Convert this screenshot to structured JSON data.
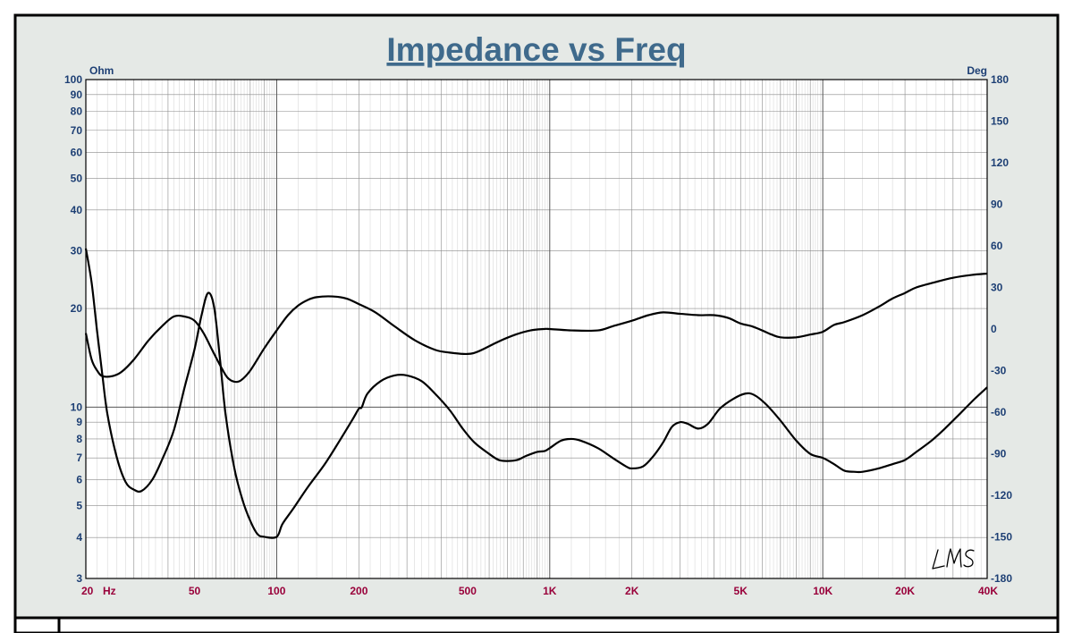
{
  "chart_data": {
    "type": "line",
    "title": "Impedance vs Freq",
    "y_left_unit": "Ohm",
    "y_right_unit": "Deg",
    "x_scale": "log",
    "y_left_scale": "log",
    "xlim": [
      20,
      40000
    ],
    "ylim_left": [
      3,
      100
    ],
    "ylim_right": [
      -180,
      180
    ],
    "x_ticks": [
      {
        "value": 20,
        "label": "20"
      },
      {
        "value": 50,
        "label": "50"
      },
      {
        "value": 100,
        "label": "100"
      },
      {
        "value": 200,
        "label": "200"
      },
      {
        "value": 500,
        "label": "500"
      },
      {
        "value": 1000,
        "label": "1K"
      },
      {
        "value": 2000,
        "label": "2K"
      },
      {
        "value": 5000,
        "label": "5K"
      },
      {
        "value": 10000,
        "label": "10K"
      },
      {
        "value": 20000,
        "label": "20K"
      },
      {
        "value": 40000,
        "label": "40K"
      }
    ],
    "x_unit_label": "Hz",
    "y_left_ticks": [
      {
        "value": 3,
        "label": "3"
      },
      {
        "value": 4,
        "label": "4"
      },
      {
        "value": 5,
        "label": "5"
      },
      {
        "value": 6,
        "label": "6"
      },
      {
        "value": 7,
        "label": "7"
      },
      {
        "value": 8,
        "label": "8"
      },
      {
        "value": 9,
        "label": "9"
      },
      {
        "value": 10,
        "label": "10"
      },
      {
        "value": 20,
        "label": "20"
      },
      {
        "value": 30,
        "label": "30"
      },
      {
        "value": 40,
        "label": "40"
      },
      {
        "value": 50,
        "label": "50"
      },
      {
        "value": 60,
        "label": "60"
      },
      {
        "value": 70,
        "label": "70"
      },
      {
        "value": 80,
        "label": "80"
      },
      {
        "value": 90,
        "label": "90"
      },
      {
        "value": 100,
        "label": "100"
      }
    ],
    "y_right_ticks": [
      {
        "value": 180,
        "label": "180"
      },
      {
        "value": 150,
        "label": "150"
      },
      {
        "value": 120,
        "label": "120"
      },
      {
        "value": 90,
        "label": "90"
      },
      {
        "value": 60,
        "label": "60"
      },
      {
        "value": 30,
        "label": "30"
      },
      {
        "value": 0,
        "label": "0"
      },
      {
        "value": -30,
        "label": "-30"
      },
      {
        "value": -60,
        "label": "-60"
      },
      {
        "value": -90,
        "label": "-90"
      },
      {
        "value": -120,
        "label": "-120"
      },
      {
        "value": -150,
        "label": "-150"
      },
      {
        "value": -180,
        "label": "-180"
      }
    ],
    "grid": true,
    "series": [
      {
        "axis": "left",
        "points": [
          [
            20,
            30.5
          ],
          [
            21,
            24
          ],
          [
            22,
            17
          ],
          [
            23,
            12.5
          ],
          [
            24,
            9.5
          ],
          [
            26,
            7
          ],
          [
            28,
            5.9
          ],
          [
            30,
            5.6
          ],
          [
            32,
            5.55
          ],
          [
            35,
            6
          ],
          [
            38,
            6.9
          ],
          [
            42,
            8.5
          ],
          [
            46,
            11.5
          ],
          [
            50,
            15
          ],
          [
            53,
            19
          ],
          [
            56,
            22.3
          ],
          [
            59,
            20.2
          ],
          [
            62,
            14
          ],
          [
            65,
            9.5
          ],
          [
            70,
            6.5
          ],
          [
            75,
            5.2
          ],
          [
            80,
            4.5
          ],
          [
            85,
            4.1
          ],
          [
            90,
            4.02
          ],
          [
            100,
            4.02
          ],
          [
            105,
            4.4
          ],
          [
            115,
            4.9
          ],
          [
            130,
            5.7
          ],
          [
            150,
            6.7
          ],
          [
            170,
            7.9
          ],
          [
            190,
            9.2
          ],
          [
            200,
            9.9
          ],
          [
            205,
            10
          ],
          [
            215,
            11
          ],
          [
            240,
            12
          ],
          [
            270,
            12.5
          ],
          [
            300,
            12.5
          ],
          [
            340,
            12
          ],
          [
            380,
            11
          ],
          [
            430,
            9.8
          ],
          [
            480,
            8.6
          ],
          [
            530,
            7.8
          ],
          [
            600,
            7.2
          ],
          [
            650,
            6.9
          ],
          [
            700,
            6.85
          ],
          [
            760,
            6.9
          ],
          [
            820,
            7.1
          ],
          [
            900,
            7.3
          ],
          [
            960,
            7.35
          ],
          [
            1000,
            7.5
          ],
          [
            1100,
            7.9
          ],
          [
            1200,
            8
          ],
          [
            1300,
            7.9
          ],
          [
            1500,
            7.5
          ],
          [
            1700,
            7
          ],
          [
            1900,
            6.6
          ],
          [
            2000,
            6.5
          ],
          [
            2200,
            6.6
          ],
          [
            2400,
            7.1
          ],
          [
            2600,
            7.8
          ],
          [
            2800,
            8.7
          ],
          [
            3000,
            9
          ],
          [
            3200,
            8.9
          ],
          [
            3500,
            8.6
          ],
          [
            3800,
            8.9
          ],
          [
            4200,
            9.9
          ],
          [
            4700,
            10.6
          ],
          [
            5200,
            11
          ],
          [
            5600,
            10.9
          ],
          [
            6200,
            10.2
          ],
          [
            7000,
            9.1
          ],
          [
            8000,
            7.9
          ],
          [
            9000,
            7.2
          ],
          [
            10000,
            7
          ],
          [
            11000,
            6.7
          ],
          [
            12000,
            6.4
          ],
          [
            13000,
            6.35
          ],
          [
            14000,
            6.35
          ],
          [
            16000,
            6.5
          ],
          [
            18000,
            6.7
          ],
          [
            20000,
            6.9
          ],
          [
            22000,
            7.3
          ],
          [
            25000,
            7.9
          ],
          [
            28000,
            8.6
          ],
          [
            32000,
            9.6
          ],
          [
            36000,
            10.6
          ],
          [
            40000,
            11.5
          ]
        ]
      },
      {
        "axis": "right",
        "points": [
          [
            20,
            -3
          ],
          [
            21,
            -22
          ],
          [
            22,
            -30
          ],
          [
            23,
            -34
          ],
          [
            25,
            -34
          ],
          [
            27,
            -31
          ],
          [
            30,
            -22
          ],
          [
            34,
            -8
          ],
          [
            38,
            2
          ],
          [
            42,
            9
          ],
          [
            46,
            9
          ],
          [
            50,
            6
          ],
          [
            54,
            -3
          ],
          [
            58,
            -15
          ],
          [
            62,
            -26
          ],
          [
            66,
            -35
          ],
          [
            70,
            -38
          ],
          [
            74,
            -37
          ],
          [
            80,
            -30
          ],
          [
            90,
            -14
          ],
          [
            100,
            -1
          ],
          [
            110,
            10
          ],
          [
            120,
            17
          ],
          [
            130,
            21
          ],
          [
            140,
            23
          ],
          [
            160,
            23.5
          ],
          [
            180,
            22
          ],
          [
            200,
            18
          ],
          [
            230,
            12
          ],
          [
            270,
            2
          ],
          [
            320,
            -8
          ],
          [
            380,
            -15
          ],
          [
            430,
            -17
          ],
          [
            500,
            -18
          ],
          [
            550,
            -16
          ],
          [
            650,
            -9
          ],
          [
            750,
            -4
          ],
          [
            850,
            -1
          ],
          [
            950,
            0
          ],
          [
            1000,
            0
          ],
          [
            1200,
            -1
          ],
          [
            1500,
            -1
          ],
          [
            1700,
            2
          ],
          [
            2000,
            6
          ],
          [
            2300,
            10
          ],
          [
            2600,
            12
          ],
          [
            3000,
            11
          ],
          [
            3500,
            10
          ],
          [
            4000,
            10
          ],
          [
            4500,
            8
          ],
          [
            5000,
            4
          ],
          [
            5500,
            2
          ],
          [
            6000,
            -1
          ],
          [
            6500,
            -4
          ],
          [
            7000,
            -6
          ],
          [
            8000,
            -6
          ],
          [
            9000,
            -4
          ],
          [
            10000,
            -2
          ],
          [
            11000,
            3
          ],
          [
            12000,
            5
          ],
          [
            14000,
            10
          ],
          [
            16000,
            16
          ],
          [
            18000,
            22
          ],
          [
            20000,
            26
          ],
          [
            22000,
            30
          ],
          [
            26000,
            34
          ],
          [
            30000,
            37
          ],
          [
            35000,
            39
          ],
          [
            40000,
            40
          ]
        ]
      }
    ],
    "colors": {
      "title": "#3f6a8c",
      "left_axis_labels": "#1d3f74",
      "right_axis_labels": "#1d3f74",
      "x_axis_labels": "#99003a",
      "plot_background": "#ffffff",
      "page_background": "#e5e9e6",
      "grid": "#8a8a8a",
      "curve": "#000000"
    },
    "watermark": "LMS"
  }
}
